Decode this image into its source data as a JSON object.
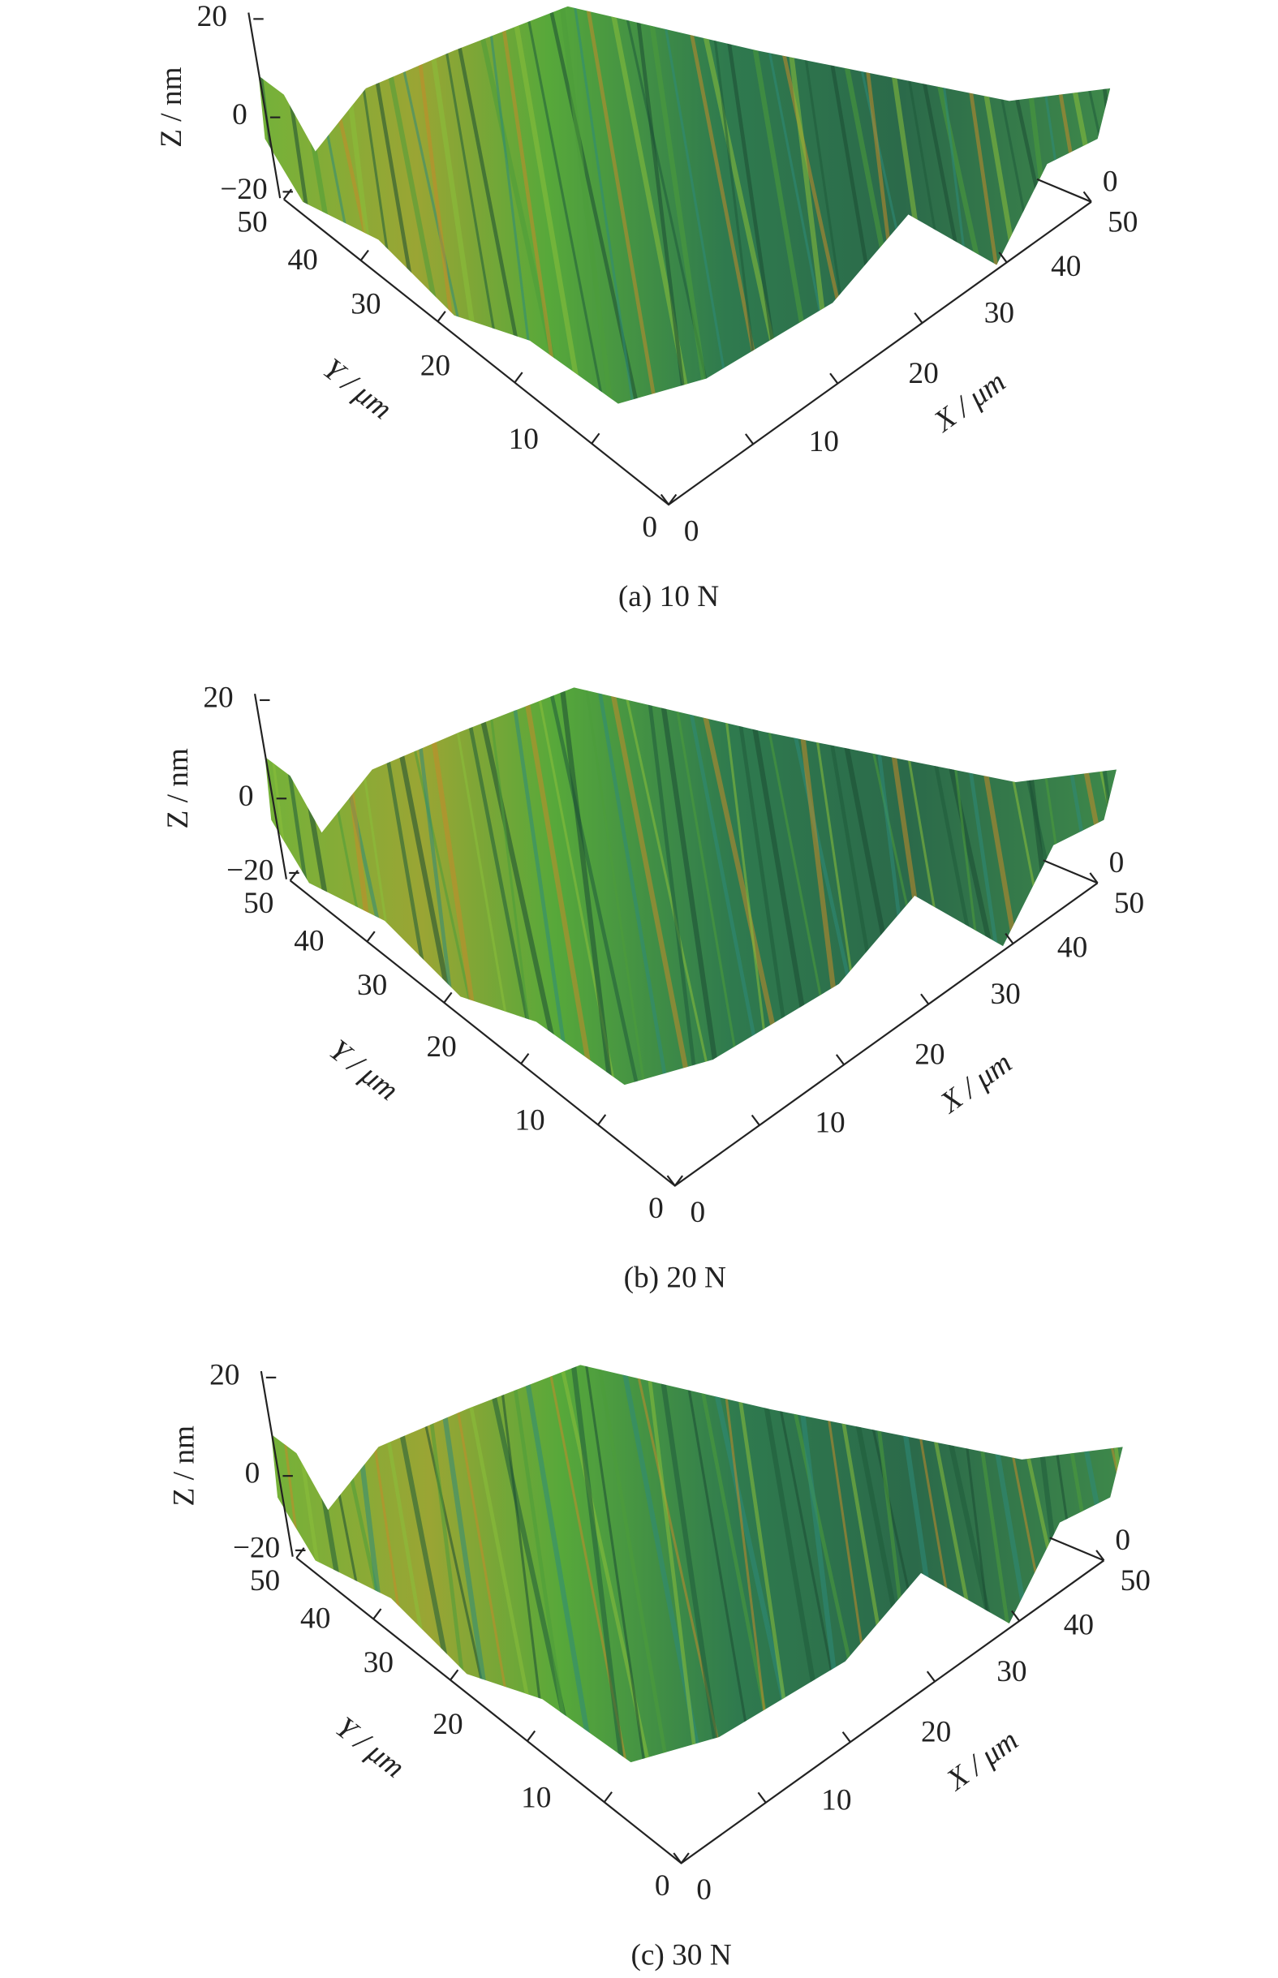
{
  "panels": [
    {
      "caption": "(a) 10 N",
      "z_label": "Z / nm",
      "y_label": "Y / μm",
      "x_label": "X / μm",
      "z_ticks": [
        "20",
        "0",
        "−20"
      ],
      "y_ticks": [
        "50",
        "40",
        "30",
        "20",
        "10",
        "0"
      ],
      "x_ticks": [
        "0",
        "10",
        "20",
        "30",
        "40",
        "50"
      ],
      "corner_tick": "0"
    },
    {
      "caption": "(b) 20 N",
      "z_label": "Z / nm",
      "y_label": "Y / μm",
      "x_label": "X / μm",
      "z_ticks": [
        "20",
        "0",
        "−20"
      ],
      "y_ticks": [
        "50",
        "40",
        "30",
        "20",
        "10",
        "0"
      ],
      "x_ticks": [
        "0",
        "10",
        "20",
        "30",
        "40",
        "50"
      ],
      "corner_tick": "0"
    },
    {
      "caption": "(c) 30 N",
      "z_label": "Z / nm",
      "y_label": "Y / μm",
      "x_label": "X / μm",
      "z_ticks": [
        "20",
        "0",
        "−20"
      ],
      "y_ticks": [
        "50",
        "40",
        "30",
        "20",
        "10",
        "0"
      ],
      "x_ticks": [
        "0",
        "10",
        "20",
        "30",
        "40",
        "50"
      ],
      "corner_tick": "0"
    }
  ]
}
